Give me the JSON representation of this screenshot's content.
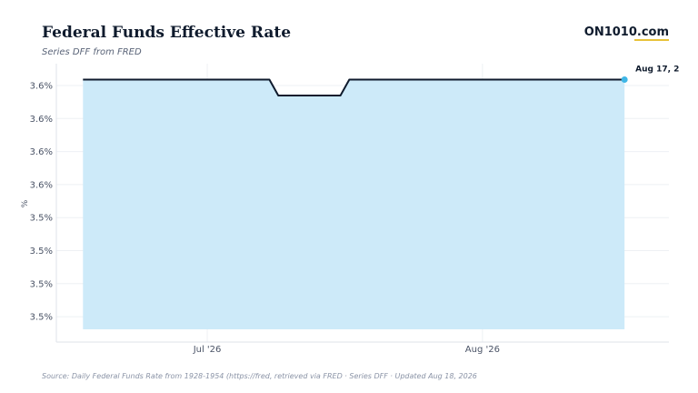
{
  "header": {
    "title": "Federal Funds Effective Rate",
    "subtitle": "Series DFF from FRED",
    "brand": "ON1010.com"
  },
  "footer": {
    "source": "Source:  Daily Federal Funds Rate from 1928-1954 (https://fred, retrieved via FRED · Series DFF · Updated Aug 18, 2026"
  },
  "colors": {
    "line": "#0f1b2d",
    "area": "#cdeaf9",
    "end_marker": "#3fb6e6",
    "grid": "#eef0f4",
    "brand_accent": "#e8c23a"
  },
  "chart_data": {
    "type": "area",
    "title": "Federal Funds Effective Rate",
    "subtitle": "Series DFF from FRED",
    "xlabel": "",
    "ylabel": "%",
    "y_tick_labels": [
      "3.6%",
      "3.6%",
      "3.6%",
      "3.6%",
      "3.5%",
      "3.5%",
      "3.5%",
      "3.5%"
    ],
    "x_tick_labels": [
      {
        "label": "Jul '26",
        "date": "2026-07-01"
      },
      {
        "label": "Aug '26",
        "date": "2026-08-01"
      }
    ],
    "ylim": [
      3.465,
      3.64
    ],
    "xlim": [
      "2026-06-14",
      "2026-08-22"
    ],
    "grid": true,
    "series": [
      {
        "x": [
          "2026-06-17",
          "2026-06-18",
          "2026-06-19",
          "2026-06-20",
          "2026-06-21",
          "2026-06-22",
          "2026-06-23",
          "2026-06-24",
          "2026-06-25",
          "2026-06-26",
          "2026-06-27",
          "2026-06-28",
          "2026-06-29",
          "2026-06-30",
          "2026-07-01",
          "2026-07-02",
          "2026-07-03",
          "2026-07-04",
          "2026-07-05",
          "2026-07-06",
          "2026-07-07",
          "2026-07-08",
          "2026-07-09",
          "2026-07-10",
          "2026-07-11",
          "2026-07-12",
          "2026-07-13",
          "2026-07-14",
          "2026-07-15",
          "2026-07-16",
          "2026-07-17",
          "2026-07-18",
          "2026-07-19",
          "2026-07-20",
          "2026-07-21",
          "2026-07-22",
          "2026-07-23",
          "2026-07-24",
          "2026-07-25",
          "2026-07-26",
          "2026-07-27",
          "2026-07-28",
          "2026-07-29",
          "2026-07-30",
          "2026-07-31",
          "2026-08-01",
          "2026-08-02",
          "2026-08-03",
          "2026-08-04",
          "2026-08-05",
          "2026-08-06",
          "2026-08-07",
          "2026-08-08",
          "2026-08-09",
          "2026-08-10",
          "2026-08-11",
          "2026-08-12",
          "2026-08-13",
          "2026-08-14",
          "2026-08-15",
          "2026-08-16",
          "2026-08-17"
        ],
        "values": [
          3.63,
          3.63,
          3.63,
          3.63,
          3.63,
          3.63,
          3.63,
          3.63,
          3.63,
          3.63,
          3.63,
          3.63,
          3.63,
          3.63,
          3.63,
          3.63,
          3.63,
          3.63,
          3.63,
          3.63,
          3.63,
          3.63,
          3.62,
          3.62,
          3.62,
          3.62,
          3.62,
          3.62,
          3.62,
          3.62,
          3.63,
          3.63,
          3.63,
          3.63,
          3.63,
          3.63,
          3.63,
          3.63,
          3.63,
          3.63,
          3.63,
          3.63,
          3.63,
          3.63,
          3.63,
          3.63,
          3.63,
          3.63,
          3.63,
          3.63,
          3.63,
          3.63,
          3.63,
          3.63,
          3.63,
          3.63,
          3.63,
          3.63,
          3.63,
          3.63,
          3.63,
          3.63
        ]
      }
    ],
    "end_label": "Aug 17, 2"
  }
}
